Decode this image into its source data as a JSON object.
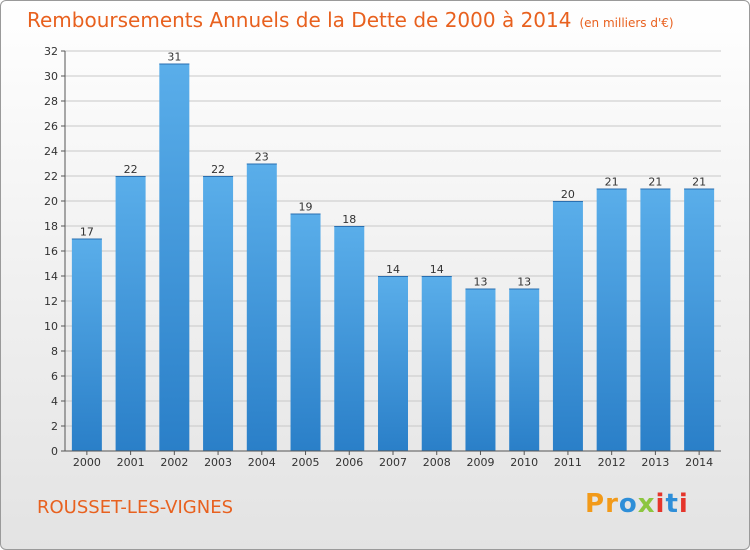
{
  "header": {
    "title": "Remboursements Annuels de la Dette de 2000 à 2014",
    "unit": "(en milliers d'€)"
  },
  "footer": {
    "commune": "ROUSSET-LES-VIGNES",
    "logo_text": "Proxiti"
  },
  "colors": {
    "title": "#e8611f",
    "bar_light": "#5aaeea",
    "bar_dark": "#2a7fc8",
    "grid": "#c8c8c8"
  },
  "chart_data": {
    "type": "bar",
    "title": "Remboursements Annuels de la Dette de 2000 à 2014",
    "subtitle": "(en milliers d'€)",
    "xlabel": "",
    "ylabel": "",
    "categories": [
      "2000",
      "2001",
      "2002",
      "2003",
      "2004",
      "2005",
      "2006",
      "2007",
      "2008",
      "2009",
      "2010",
      "2011",
      "2012",
      "2013",
      "2014"
    ],
    "values": [
      17,
      22,
      31,
      22,
      23,
      19,
      18,
      14,
      14,
      13,
      13,
      20,
      21,
      21,
      21
    ],
    "data_labels": [
      "17",
      "22",
      "31",
      "22",
      "23",
      "19",
      "18",
      "14",
      "14",
      "13",
      "13",
      "20",
      "21",
      "21",
      "21"
    ],
    "ylim": [
      0,
      32
    ],
    "yticks": [
      0,
      2,
      4,
      6,
      8,
      10,
      12,
      14,
      16,
      18,
      20,
      22,
      24,
      26,
      28,
      30,
      32
    ],
    "grid": true,
    "legend": "none"
  }
}
